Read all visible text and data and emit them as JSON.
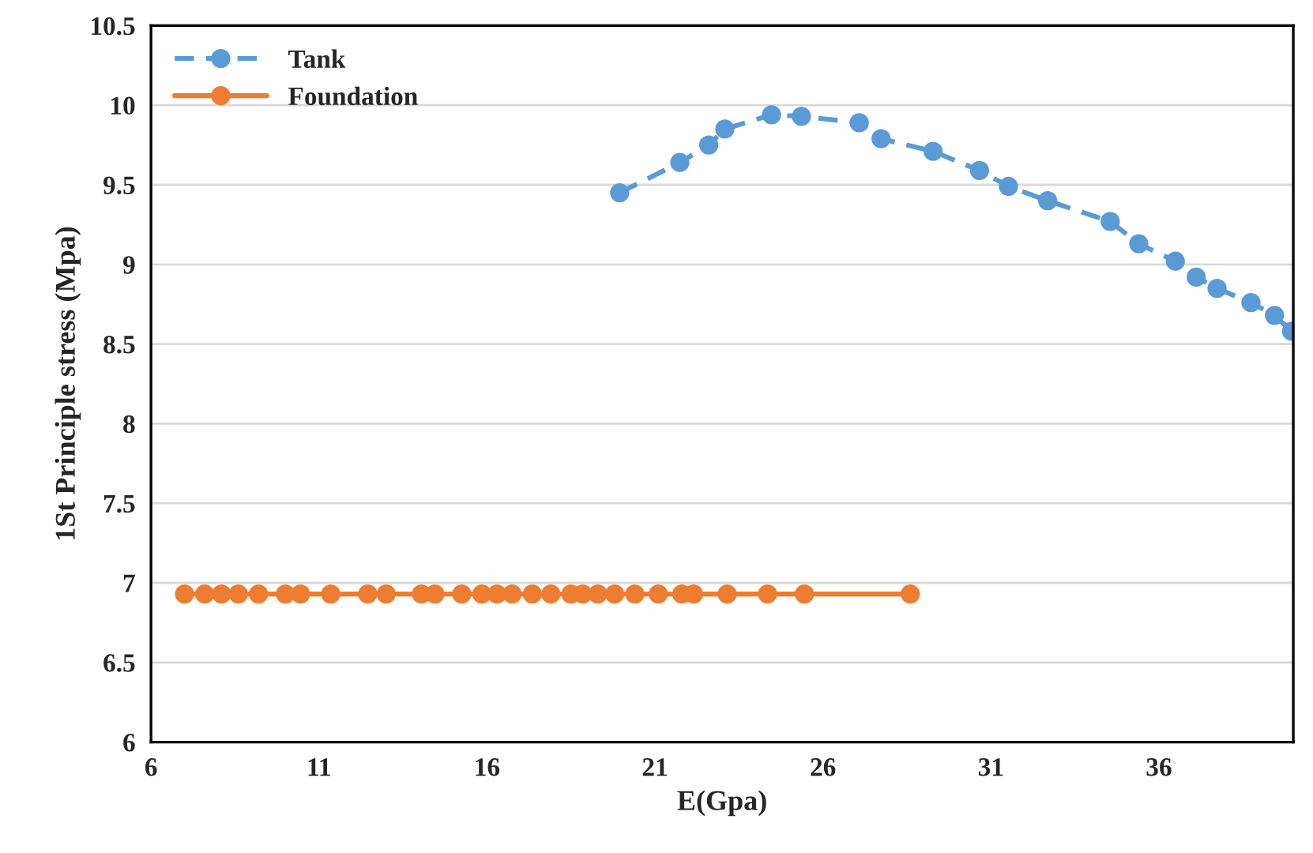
{
  "chart_data": {
    "type": "line",
    "xlabel": "E(Gpa)",
    "ylabel": "1St Principle stress (Mpa)",
    "xlim": [
      6,
      40
    ],
    "xticks": [
      6,
      11,
      16,
      21,
      26,
      31,
      36
    ],
    "ylim": [
      6,
      10.5
    ],
    "yticks": [
      6,
      6.5,
      7,
      7.5,
      8,
      8.5,
      9,
      9.5,
      10,
      10.5
    ],
    "grid": "y",
    "legend": "top left",
    "marker": "circle",
    "series": [
      {
        "name": "Tank",
        "color": "#5b9bd5",
        "line_style": "dashed",
        "x": [
          19.95,
          21.74,
          22.6,
          23.08,
          24.47,
          25.36,
          27.08,
          27.73,
          29.28,
          30.66,
          31.52,
          32.69,
          34.55,
          35.4,
          36.49,
          37.11,
          37.73,
          38.74,
          39.44,
          39.95
        ],
        "values": [
          9.45,
          9.64,
          9.75,
          9.85,
          9.94,
          9.93,
          9.89,
          9.79,
          9.71,
          9.59,
          9.49,
          9.4,
          9.27,
          9.13,
          9.02,
          8.92,
          8.85,
          8.76,
          8.68,
          8.58
        ]
      },
      {
        "name": "Foundation",
        "color": "#ed7d31",
        "line_style": "solid",
        "x": [
          7.0,
          7.6,
          8.1,
          8.6,
          9.2,
          10.0,
          10.45,
          11.35,
          12.45,
          13.0,
          14.05,
          14.45,
          15.25,
          15.85,
          16.3,
          16.75,
          17.35,
          17.9,
          18.5,
          18.85,
          19.3,
          19.8,
          20.4,
          21.1,
          21.8,
          22.15,
          23.15,
          24.35,
          25.45,
          28.6
        ],
        "values": [
          6.93,
          6.93,
          6.93,
          6.93,
          6.93,
          6.93,
          6.93,
          6.93,
          6.93,
          6.93,
          6.93,
          6.93,
          6.93,
          6.93,
          6.93,
          6.93,
          6.93,
          6.93,
          6.93,
          6.93,
          6.93,
          6.93,
          6.93,
          6.93,
          6.93,
          6.93,
          6.93,
          6.93,
          6.93,
          6.93
        ]
      }
    ]
  }
}
